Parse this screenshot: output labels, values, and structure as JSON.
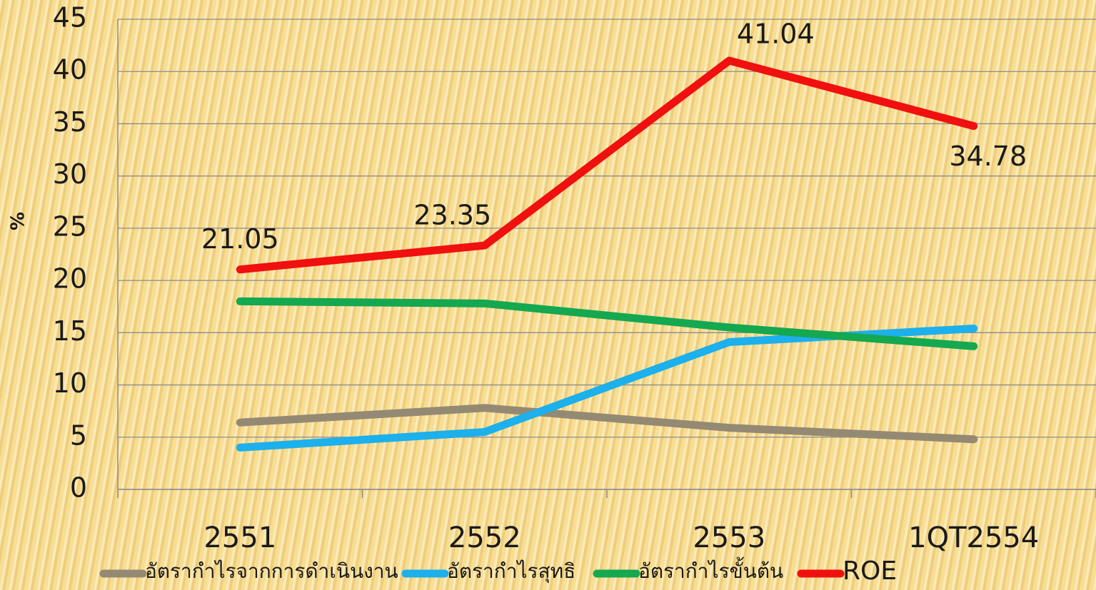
{
  "chart_data": {
    "type": "line",
    "y_label": "%",
    "categories": [
      "2551",
      "2552",
      "2553",
      "1QT2554"
    ],
    "series": [
      {
        "name": "อัตรากำไรจากการดำเนินงาน",
        "color": "#948a74",
        "values": [
          6.4,
          7.8,
          5.9,
          4.8
        ]
      },
      {
        "name": "อัตรากำไรสุทธิ",
        "color": "#1cb0ec",
        "values": [
          4.0,
          5.5,
          14.1,
          15.4
        ]
      },
      {
        "name": "อัตรากำไรขั้นต้น",
        "color": "#14a850",
        "values": [
          18.0,
          17.8,
          15.5,
          13.7
        ]
      },
      {
        "name": "ROE",
        "color": "#f01010",
        "values": [
          21.05,
          23.35,
          41.04,
          34.78
        ],
        "data_labels": true
      }
    ],
    "ylim": [
      0,
      45
    ],
    "yticks": [
      0,
      5,
      10,
      15,
      20,
      25,
      30,
      35,
      40,
      45
    ],
    "grid": true,
    "legend": "bottom"
  }
}
